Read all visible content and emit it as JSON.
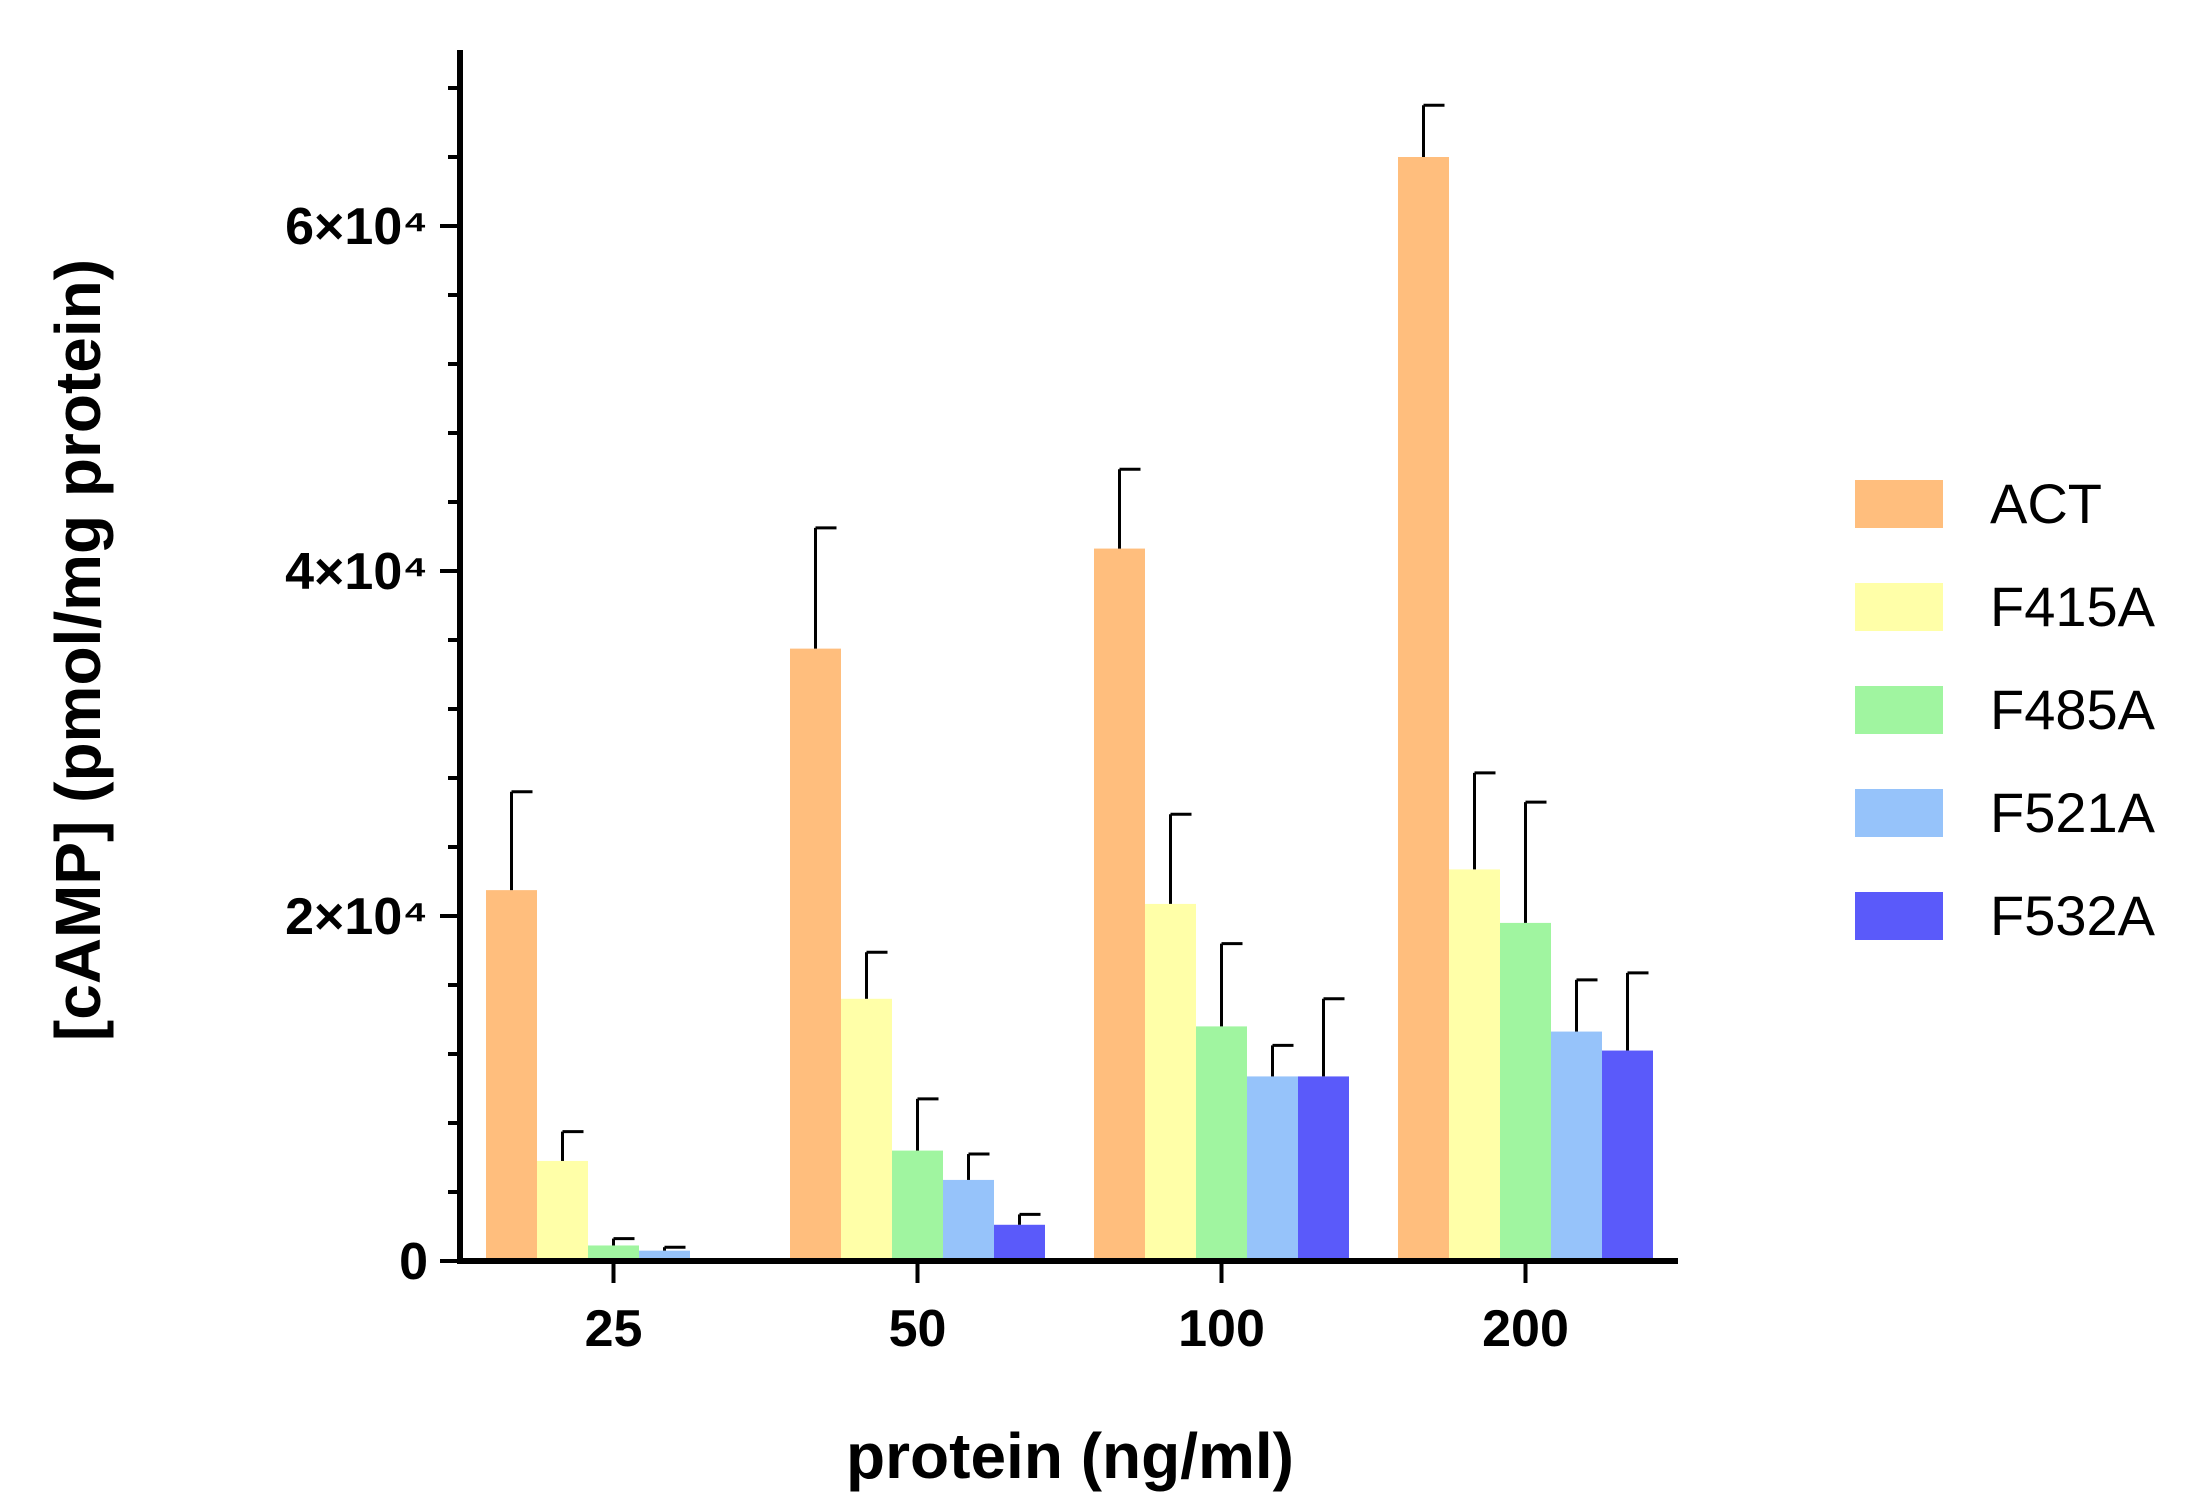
{
  "chart_data": {
    "type": "bar",
    "xlabel": "protein (ng/ml)",
    "ylabel": "[cAMP] (pmol/mg protein)",
    "categories": [
      "25",
      "50",
      "100",
      "200"
    ],
    "ylim": [
      0,
      70000
    ],
    "y_ticks": [
      {
        "value": 0,
        "label": "0"
      },
      {
        "value": 20000,
        "label": "2×10⁴"
      },
      {
        "value": 40000,
        "label": "4×10⁴"
      },
      {
        "value": 60000,
        "label": "6×10⁴"
      }
    ],
    "legend_position": "right",
    "series": [
      {
        "name": "ACT",
        "color": "#FFBE7D",
        "values": [
          21500,
          35500,
          41300,
          64000
        ],
        "errors": [
          5700,
          7000,
          4600,
          3000
        ]
      },
      {
        "name": "F415A",
        "color": "#FFFFA8",
        "values": [
          5800,
          15200,
          20700,
          22700
        ],
        "errors": [
          1700,
          2700,
          5200,
          5600
        ]
      },
      {
        "name": "F485A",
        "color": "#A0F5A0",
        "values": [
          900,
          6400,
          13600,
          19600
        ],
        "errors": [
          400,
          3000,
          4800,
          7000
        ]
      },
      {
        "name": "F521A",
        "color": "#96C3FA",
        "values": [
          600,
          4700,
          10700,
          13300
        ],
        "errors": [
          200,
          1500,
          1800,
          3000
        ]
      },
      {
        "name": "F532A",
        "color": "#5A5AFA",
        "values": [
          0,
          2100,
          10700,
          12200
        ],
        "errors": [
          0,
          600,
          4500,
          4500
        ]
      }
    ]
  }
}
